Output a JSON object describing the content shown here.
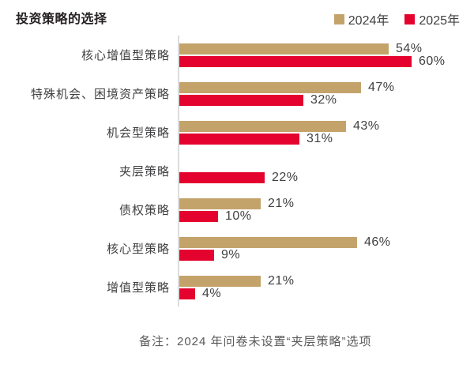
{
  "chart_data": {
    "type": "bar",
    "orientation": "horizontal",
    "title": "投资策略的选择",
    "unit": "%",
    "categories": [
      "核心增值型策略",
      "特殊机会、困境资产策略",
      "机会型策略",
      "夹层策略",
      "债权策略",
      "核心型策略",
      "增值型策略"
    ],
    "series": [
      {
        "name": "2024年",
        "color": "#c4a36b",
        "values": [
          54,
          47,
          43,
          null,
          21,
          46,
          21
        ]
      },
      {
        "name": "2025年",
        "color": "#e4032e",
        "values": [
          60,
          32,
          31,
          22,
          10,
          9,
          4
        ]
      }
    ],
    "xlim": [
      0,
      65
    ],
    "value_labels": true,
    "legend_position": "top-right",
    "grid": false,
    "axis_line_color": "#dcdcdc",
    "note": "备注：2024 年问卷未设置“夹层策略”选项"
  }
}
